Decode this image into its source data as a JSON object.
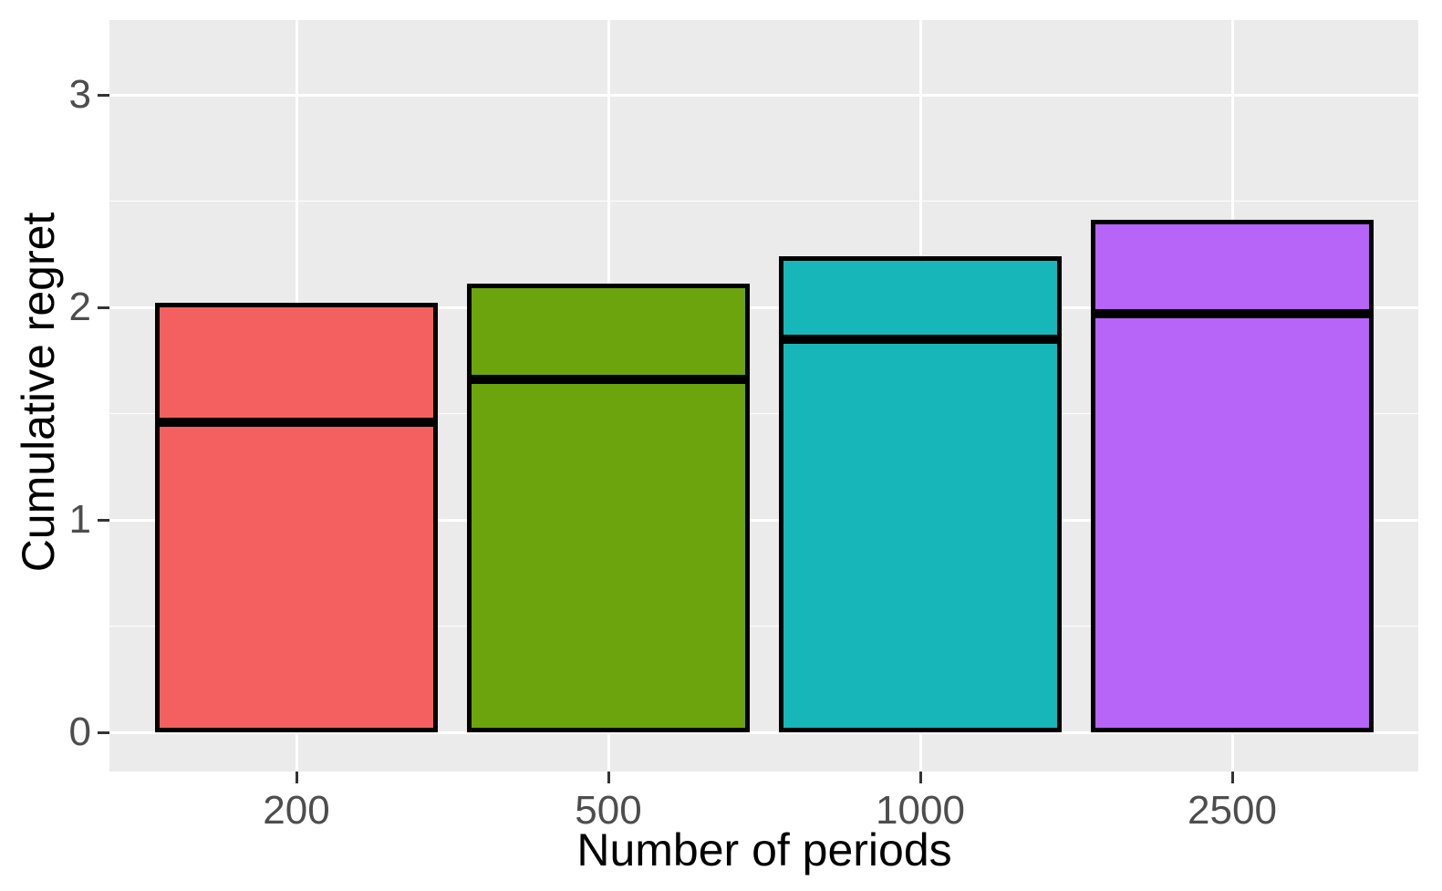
{
  "figure": {
    "background_color": "#FFFFFF",
    "panel_background_color": "#EBEBEB",
    "gridline_color": "#FFFFFF",
    "tick_mark_color": "#333333",
    "tick_label_color": "#4D4D4D",
    "axis_title_color": "#000000"
  },
  "chart_data": {
    "type": "bar",
    "variant": "crossbar",
    "title": "",
    "xlabel": "Number of periods",
    "ylabel": "Cumulative regret",
    "categories": [
      "200",
      "500",
      "1000",
      "2500"
    ],
    "series": [
      {
        "name": "bar_top",
        "values": [
          2.02,
          2.11,
          2.24,
          2.41
        ]
      },
      {
        "name": "middle_line",
        "values": [
          1.46,
          1.66,
          1.85,
          1.97
        ]
      },
      {
        "name": "bar_bottom",
        "values": [
          0,
          0,
          0,
          0
        ]
      }
    ],
    "bar_colors": [
      "#F4605F",
      "#6CA40E",
      "#17B6B9",
      "#B764F9"
    ],
    "bar_border_color": "#000000",
    "middle_line_color": "#000000",
    "y_major_ticks": [
      "0",
      "1",
      "2",
      "3"
    ],
    "y_major_values": [
      0,
      1,
      2,
      3
    ],
    "y_minor_values": [
      0.5,
      1.5,
      2.5
    ],
    "ylim": [
      -0.18,
      3.36
    ],
    "grid": true,
    "legend": "none"
  }
}
